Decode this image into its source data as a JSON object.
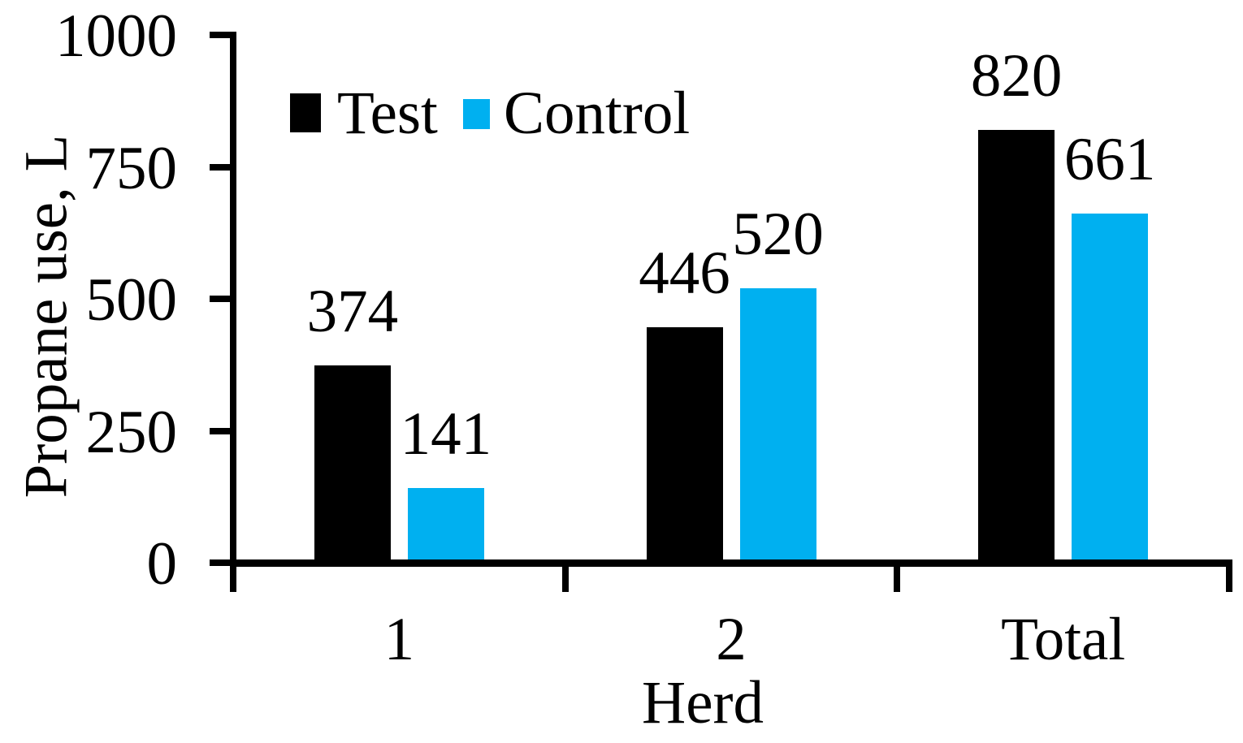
{
  "chart_data": {
    "type": "bar",
    "title": "",
    "categories": [
      "1",
      "2",
      "Total"
    ],
    "series": [
      {
        "name": "Test",
        "color": "#000000",
        "values": [
          374,
          446,
          820
        ]
      },
      {
        "name": "Control",
        "color": "#00B0F0",
        "values": [
          141,
          520,
          661
        ]
      }
    ],
    "xlabel": "Herd",
    "ylabel": "Propane use, L",
    "ylim": [
      0,
      1000
    ],
    "yticks": [
      0,
      250,
      500,
      750,
      1000
    ],
    "grid": false,
    "data_labels": true,
    "legend_position": "top-inside",
    "background_color": "#ffffff",
    "axis_color": "#000000",
    "text_color": "#000000"
  }
}
